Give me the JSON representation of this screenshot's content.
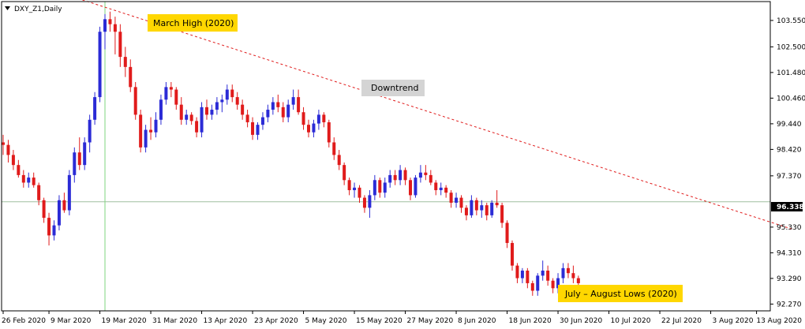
{
  "colors": {
    "bull": "#2b2bd6",
    "bear": "#e01b1b",
    "trendline": "#e01b1b",
    "hline": "#9fbf9f",
    "vline": "#7fd67f",
    "axis": "#000000",
    "highlight_yellow": "#ffd700",
    "highlight_gray": "#d4d4d4"
  },
  "chart_data": {
    "type": "candlestick",
    "title": "DXY_Z1,Daily",
    "symbol_marker_icon": "triangle-down-icon",
    "y_ticks": [
      "103.550",
      "102.500",
      "101.480",
      "100.460",
      "99.440",
      "98.420",
      "97.370",
      "96.338",
      "95.330",
      "94.310",
      "93.290",
      "92.270"
    ],
    "y_tick_values": [
      103.55,
      102.5,
      101.48,
      100.46,
      99.44,
      98.42,
      97.37,
      95.33,
      94.31,
      93.29,
      92.27
    ],
    "ylim": [
      92.0,
      104.3
    ],
    "x_ticks": [
      {
        "label": "26 Feb 2020",
        "index": 0
      },
      {
        "label": "9 Mar 2020",
        "index": 9
      },
      {
        "label": "19 Mar 2020",
        "index": 19
      },
      {
        "label": "31 Mar 2020",
        "index": 29
      },
      {
        "label": "13 Apr 2020",
        "index": 39
      },
      {
        "label": "23 Apr 2020",
        "index": 49
      },
      {
        "label": "5 May 2020",
        "index": 59
      },
      {
        "label": "15 May 2020",
        "index": 69
      },
      {
        "label": "27 May 2020",
        "index": 79
      },
      {
        "label": "8 Jun 2020",
        "index": 89
      },
      {
        "label": "18 Jun 2020",
        "index": 99
      },
      {
        "label": "30 Jun 2020",
        "index": 109
      },
      {
        "label": "10 Jul 2020",
        "index": 119
      },
      {
        "label": "22 Jul 2020",
        "index": 129
      },
      {
        "label": "3 Aug 2020",
        "index": 139
      },
      {
        "label": "13 Aug 2020",
        "index": 148
      }
    ],
    "current_price": {
      "label": "96.338",
      "value": 96.338
    },
    "march_high_marker_index": 20,
    "trendline": {
      "start": {
        "index": 12,
        "value": 104.6
      },
      "end": {
        "index": 155,
        "value": 95.25
      }
    },
    "annotations": [
      {
        "text": "March High (2020)",
        "style": "yellow"
      },
      {
        "text": "Downtrend",
        "style": "gray"
      },
      {
        "text": "July – August Lows (2020)",
        "style": "yellow"
      }
    ],
    "candles": [
      [
        98.7,
        99.0,
        98.2,
        98.6
      ],
      [
        98.6,
        98.8,
        97.9,
        98.2
      ],
      [
        98.2,
        98.4,
        97.6,
        97.8
      ],
      [
        97.8,
        98.0,
        97.3,
        97.4
      ],
      [
        97.4,
        97.6,
        96.9,
        97.1
      ],
      [
        97.1,
        97.5,
        96.9,
        97.3
      ],
      [
        97.3,
        97.5,
        96.9,
        97.0
      ],
      [
        97.0,
        97.1,
        96.2,
        96.4
      ],
      [
        96.4,
        96.5,
        95.5,
        95.7
      ],
      [
        95.7,
        95.9,
        94.6,
        95.0
      ],
      [
        95.0,
        95.6,
        94.8,
        95.4
      ],
      [
        95.4,
        96.6,
        95.2,
        96.4
      ],
      [
        96.4,
        96.7,
        95.9,
        96.0
      ],
      [
        96.0,
        97.6,
        95.8,
        97.4
      ],
      [
        97.4,
        98.5,
        97.1,
        98.3
      ],
      [
        98.3,
        98.9,
        97.6,
        97.8
      ],
      [
        97.8,
        98.9,
        97.6,
        98.7
      ],
      [
        98.7,
        99.8,
        98.3,
        99.6
      ],
      [
        99.6,
        100.7,
        99.4,
        100.5
      ],
      [
        100.5,
        103.3,
        100.3,
        103.1
      ],
      [
        103.1,
        103.8,
        102.4,
        103.6
      ],
      [
        103.6,
        103.9,
        103.1,
        103.4
      ],
      [
        103.4,
        103.7,
        102.2,
        103.1
      ],
      [
        103.1,
        103.4,
        101.7,
        102.1
      ],
      [
        102.1,
        102.5,
        101.3,
        101.7
      ],
      [
        101.7,
        102.0,
        100.7,
        100.9
      ],
      [
        100.9,
        101.1,
        99.6,
        99.8
      ],
      [
        99.8,
        100.0,
        98.3,
        98.5
      ],
      [
        98.5,
        99.4,
        98.3,
        99.2
      ],
      [
        99.2,
        99.7,
        98.8,
        99.1
      ],
      [
        99.1,
        99.9,
        98.9,
        99.6
      ],
      [
        99.6,
        100.6,
        99.4,
        100.4
      ],
      [
        100.4,
        101.1,
        100.2,
        100.9
      ],
      [
        100.9,
        101.1,
        100.5,
        100.8
      ],
      [
        100.8,
        100.9,
        100.0,
        100.2
      ],
      [
        100.2,
        100.5,
        99.4,
        99.6
      ],
      [
        99.6,
        100.0,
        99.4,
        99.8
      ],
      [
        99.8,
        99.9,
        99.4,
        99.55
      ],
      [
        99.55,
        99.7,
        98.9,
        99.1
      ],
      [
        99.1,
        100.3,
        98.9,
        100.1
      ],
      [
        100.1,
        100.4,
        99.6,
        99.8
      ],
      [
        99.8,
        100.2,
        99.6,
        100.0
      ],
      [
        100.0,
        100.5,
        99.8,
        100.3
      ],
      [
        100.3,
        100.6,
        99.9,
        100.4
      ],
      [
        100.4,
        101.0,
        100.2,
        100.8
      ],
      [
        100.8,
        101.0,
        100.3,
        100.5
      ],
      [
        100.5,
        100.7,
        100.0,
        100.2
      ],
      [
        100.2,
        100.4,
        99.6,
        99.8
      ],
      [
        99.8,
        100.0,
        99.3,
        99.5
      ],
      [
        99.5,
        99.7,
        98.8,
        99.0
      ],
      [
        99.0,
        99.5,
        98.8,
        99.4
      ],
      [
        99.4,
        99.9,
        99.2,
        99.7
      ],
      [
        99.7,
        100.2,
        99.5,
        100.0
      ],
      [
        100.0,
        100.5,
        99.8,
        100.3
      ],
      [
        100.3,
        100.6,
        99.9,
        100.1
      ],
      [
        100.1,
        100.3,
        99.5,
        99.7
      ],
      [
        99.7,
        100.4,
        99.5,
        100.2
      ],
      [
        100.2,
        100.8,
        100.0,
        100.5
      ],
      [
        100.5,
        100.8,
        99.8,
        99.9
      ],
      [
        99.9,
        100.1,
        99.2,
        99.4
      ],
      [
        99.4,
        99.6,
        98.9,
        99.1
      ],
      [
        99.1,
        99.6,
        98.9,
        99.45
      ],
      [
        99.45,
        100.0,
        99.2,
        99.8
      ],
      [
        99.8,
        99.9,
        99.3,
        99.5
      ],
      [
        99.5,
        99.6,
        98.5,
        98.7
      ],
      [
        98.7,
        98.9,
        98.0,
        98.2
      ],
      [
        98.2,
        98.4,
        97.6,
        97.8
      ],
      [
        97.8,
        97.9,
        97.0,
        97.2
      ],
      [
        97.2,
        97.3,
        96.6,
        96.8
      ],
      [
        96.8,
        97.1,
        96.5,
        96.9
      ],
      [
        96.9,
        97.0,
        96.3,
        96.5
      ],
      [
        96.5,
        96.6,
        95.9,
        96.1
      ],
      [
        96.1,
        96.8,
        95.7,
        96.6
      ],
      [
        96.6,
        97.4,
        96.4,
        97.2
      ],
      [
        97.2,
        97.3,
        96.5,
        96.7
      ],
      [
        96.7,
        97.3,
        96.5,
        97.1
      ],
      [
        97.1,
        97.6,
        96.9,
        97.4
      ],
      [
        97.4,
        97.6,
        97.0,
        97.2
      ],
      [
        97.2,
        97.8,
        97.0,
        97.6
      ],
      [
        97.6,
        97.7,
        97.0,
        97.2
      ],
      [
        97.2,
        97.3,
        96.4,
        96.6
      ],
      [
        96.6,
        97.4,
        96.5,
        97.3
      ],
      [
        97.3,
        97.8,
        97.1,
        97.5
      ],
      [
        97.5,
        97.8,
        97.2,
        97.4
      ],
      [
        97.4,
        97.6,
        97.0,
        97.1
      ],
      [
        97.1,
        97.2,
        96.6,
        96.8
      ],
      [
        96.8,
        97.1,
        96.6,
        96.9
      ],
      [
        96.9,
        97.0,
        96.5,
        96.7
      ],
      [
        96.7,
        96.8,
        96.1,
        96.3
      ],
      [
        96.3,
        96.7,
        96.1,
        96.5
      ],
      [
        96.5,
        96.6,
        95.9,
        96.1
      ],
      [
        96.1,
        96.2,
        95.6,
        95.8
      ],
      [
        95.8,
        96.6,
        95.7,
        96.4
      ],
      [
        96.4,
        96.5,
        95.8,
        96.0
      ],
      [
        96.0,
        96.4,
        95.7,
        96.2
      ],
      [
        96.2,
        96.3,
        95.6,
        95.8
      ],
      [
        95.8,
        96.4,
        95.7,
        96.3
      ],
      [
        96.3,
        96.8,
        96.1,
        96.2
      ],
      [
        96.2,
        96.3,
        95.3,
        95.5
      ],
      [
        95.5,
        95.6,
        94.5,
        94.7
      ],
      [
        94.7,
        94.8,
        93.6,
        93.8
      ],
      [
        93.8,
        93.9,
        93.1,
        93.3
      ],
      [
        93.3,
        93.7,
        93.1,
        93.6
      ],
      [
        93.6,
        93.7,
        92.9,
        93.1
      ],
      [
        93.1,
        93.2,
        92.6,
        92.8
      ],
      [
        92.8,
        93.5,
        92.6,
        93.4
      ],
      [
        93.4,
        94.0,
        93.2,
        93.6
      ],
      [
        93.6,
        93.8,
        93.0,
        93.2
      ],
      [
        93.2,
        93.3,
        92.7,
        92.9
      ],
      [
        92.9,
        93.5,
        92.7,
        93.3
      ],
      [
        93.3,
        93.9,
        93.1,
        93.7
      ],
      [
        93.7,
        93.9,
        93.3,
        93.5
      ],
      [
        93.5,
        93.8,
        93.1,
        93.3
      ],
      [
        93.3,
        93.4,
        92.9,
        93.1
      ]
    ]
  }
}
